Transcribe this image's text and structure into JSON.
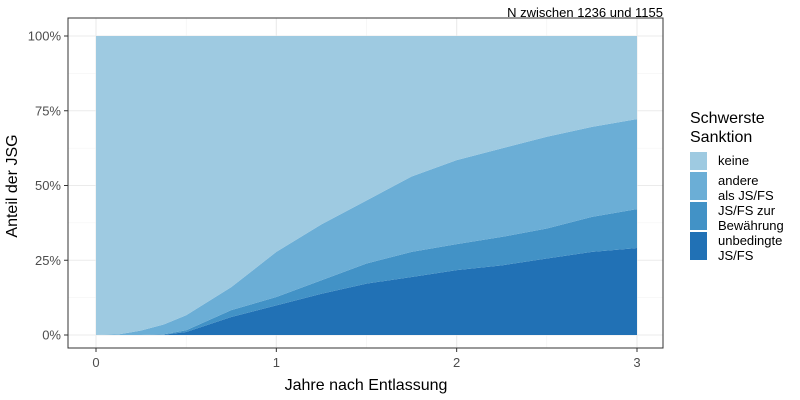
{
  "chart_data": {
    "type": "area",
    "stacked": true,
    "caption": "N zwischen 1236 und 1155",
    "xlabel": "Jahre nach Entlassung",
    "ylabel": "Anteil der JSG",
    "xlim": [
      0,
      3
    ],
    "ylim": [
      0,
      100
    ],
    "x_ticks": [
      "0",
      "1",
      "2",
      "3"
    ],
    "y_ticks": [
      "0%",
      "25%",
      "50%",
      "75%",
      "100%"
    ],
    "grid": true,
    "legend_position": "right",
    "legend_title": [
      "Schwerste",
      "Sanktion"
    ],
    "x": [
      0,
      0.125,
      0.25,
      0.375,
      0.5,
      0.75,
      1,
      1.25,
      1.5,
      1.75,
      2,
      2.25,
      2.5,
      2.75,
      3
    ],
    "series": [
      {
        "name": "unbedingte JS/FS",
        "label_lines": [
          "unbedingte",
          "JS/FS"
        ],
        "color": "#2171b5",
        "values": [
          0,
          0,
          0,
          0.1,
          1,
          6,
          9.9,
          13.8,
          17.2,
          19.4,
          21.7,
          23.3,
          25.6,
          27.8,
          29.1
        ]
      },
      {
        "name": "JS/FS zur Bewährung",
        "label_lines": [
          "JS/FS zur",
          "Bewährung"
        ],
        "color": "#4292c6",
        "values": [
          0,
          0,
          0,
          0.1,
          0.6,
          2.3,
          2.8,
          4.5,
          6.7,
          8.4,
          8.7,
          9.5,
          10,
          11.7,
          13
        ]
      },
      {
        "name": "andere als JS/FS",
        "label_lines": [
          "andere",
          "als JS/FS"
        ],
        "color": "#6baed6",
        "values": [
          0,
          0.2,
          1.5,
          3.3,
          5,
          7.7,
          15.1,
          18.7,
          21.1,
          25.2,
          28.1,
          29.6,
          30.7,
          30.1,
          30.1
        ]
      },
      {
        "name": "keine",
        "label_lines": [
          "keine"
        ],
        "color": "#9ecae1",
        "values": [
          100,
          99.8,
          98.5,
          96.5,
          93.4,
          84,
          72.2,
          63,
          55,
          47,
          41.5,
          37.6,
          33.7,
          30.4,
          27.8
        ]
      }
    ]
  }
}
